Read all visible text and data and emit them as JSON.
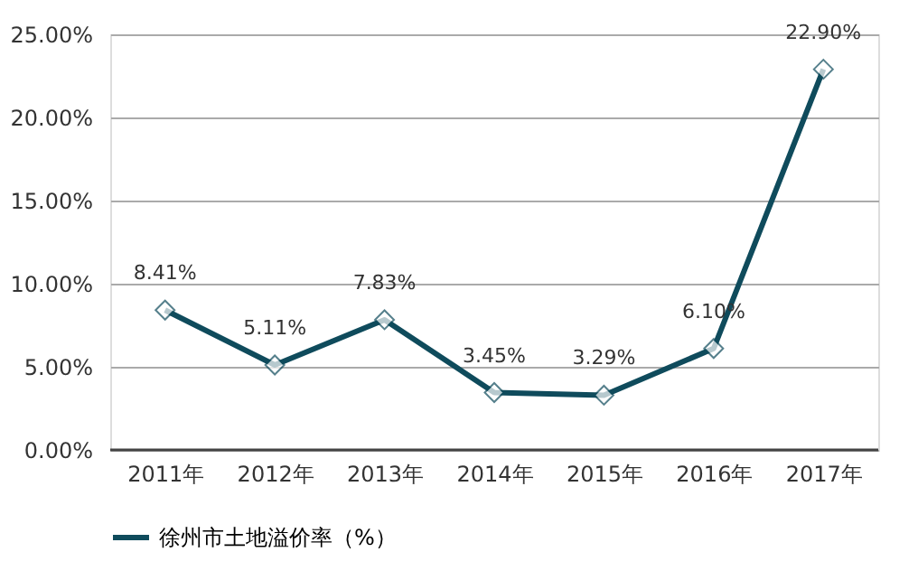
{
  "chart_data": {
    "type": "line",
    "categories": [
      "2011年",
      "2012年",
      "2013年",
      "2014年",
      "2015年",
      "2016年",
      "2017年"
    ],
    "series": [
      {
        "name": "徐州市土地溢价率（%）",
        "color": "#0f4b5c",
        "values": [
          8.41,
          5.11,
          7.83,
          3.45,
          3.29,
          6.1,
          22.9
        ],
        "value_labels": [
          "8.41%",
          "5.11%",
          "7.83%",
          "3.45%",
          "3.29%",
          "6.10%",
          "22.90%"
        ]
      }
    ],
    "ylim": [
      0,
      25
    ],
    "yticks": [
      {
        "value": 0,
        "label": "0.00%"
      },
      {
        "value": 5,
        "label": "5.00%"
      },
      {
        "value": 10,
        "label": "10.00%"
      },
      {
        "value": 15,
        "label": "15.00%"
      },
      {
        "value": 20,
        "label": "20.00%"
      },
      {
        "value": 25,
        "label": "25.00%"
      }
    ],
    "grid": "y",
    "legend": "bottom",
    "marker": "diamond",
    "line_style": "solid"
  }
}
